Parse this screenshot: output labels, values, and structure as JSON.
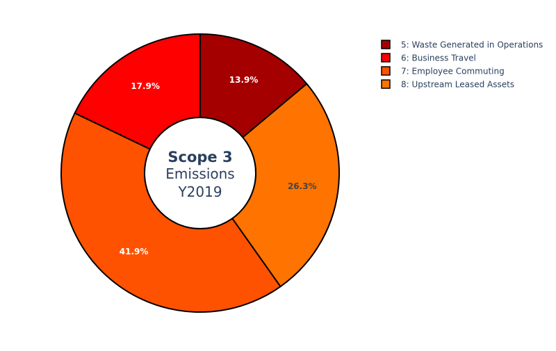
{
  "chart_data": {
    "type": "pie",
    "hole": true,
    "center_label": {
      "line1": "Scope 3",
      "line2": "Emissions",
      "line3": "Y2019"
    },
    "slices": [
      {
        "name": "5: Waste Generated in Operations",
        "value": 13.9,
        "label": "13.9%",
        "color": "#a50000",
        "label_color": "#ffffff"
      },
      {
        "name": "7: Employee Commuting",
        "value": 26.3,
        "label": "26.3%",
        "color": "#ff7300",
        "label_color": "#444444"
      },
      {
        "name": "8: Upstream Leased Assets",
        "value": 41.9,
        "label": "41.9%",
        "color": "#ff5200",
        "label_color": "#ffffff"
      },
      {
        "name": "6: Business Travel",
        "value": 17.9,
        "label": "17.9%",
        "color": "#ff0000",
        "label_color": "#ffffff"
      }
    ],
    "legend": {
      "placement": "top-right",
      "items": [
        {
          "name": "5: Waste Generated in Operations",
          "color": "#a50000"
        },
        {
          "name": "6: Business Travel",
          "color": "#ff0000"
        },
        {
          "name": "7: Employee Commuting",
          "color": "#ff5200"
        },
        {
          "name": "8: Upstream Leased Assets",
          "color": "#ff7300"
        }
      ]
    },
    "outline_color": "#000000"
  }
}
